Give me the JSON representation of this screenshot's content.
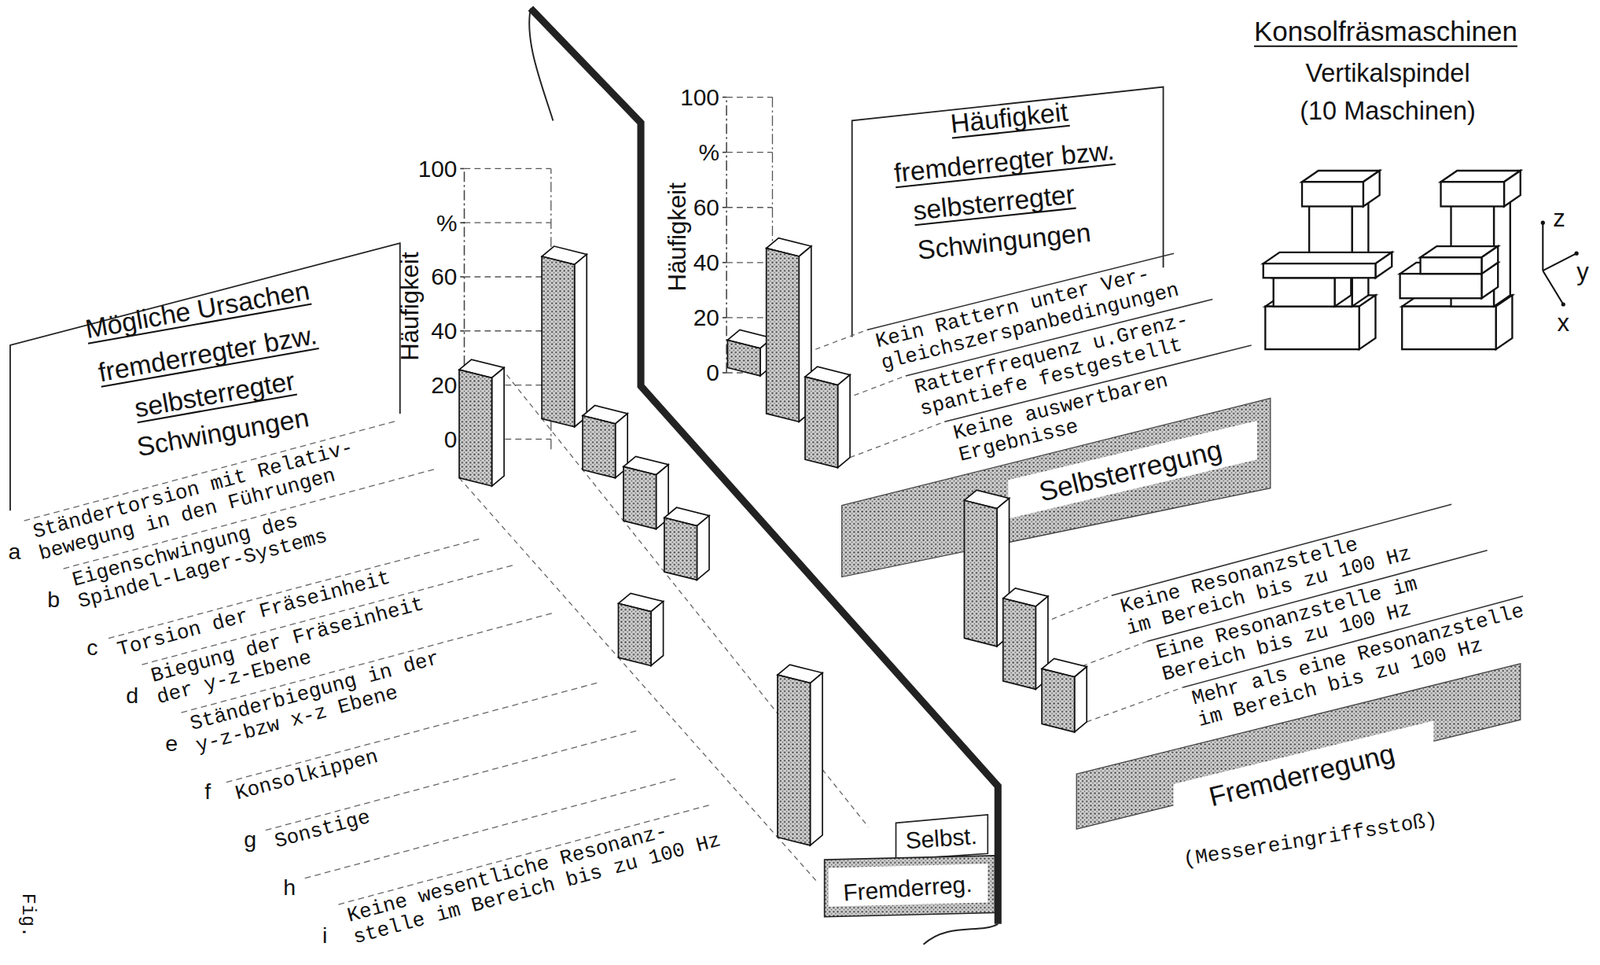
{
  "header": {
    "title": "Konsolfräsmaschinen",
    "subtitle": "Vertikalspindel",
    "note": "(10 Maschinen)"
  },
  "axis_labels": [
    "z",
    "y",
    "x"
  ],
  "figure_label": "Fig.",
  "chart_data": [
    {
      "type": "bar",
      "title": "Mögliche Ursachen fremderregter bzw. selbsterregter Schwingungen",
      "y_label": "Häufigkeit",
      "ylim": [
        0,
        100
      ],
      "yticks": [
        0,
        20,
        40,
        60,
        {
          "value": 80,
          "label": "%"
        },
        100
      ],
      "grid": true,
      "categories": [
        "a",
        "b",
        "c",
        "d",
        "e",
        "f",
        "g",
        "h",
        "i"
      ],
      "category_labels": [
        [
          "Ständertorsion mit Relativ-",
          "bewegung in den Führungen"
        ],
        [
          "Eigenschwingung des",
          "Spindel-Lager-Systems"
        ],
        [
          "Torsion der Fräseinheit"
        ],
        [
          "Biegung der Fräseinheit",
          "der y-z-Ebene"
        ],
        [
          "Ständerbiegung in der",
          "y-z-bzw x-z Ebene"
        ],
        [
          "Konsolkippen"
        ],
        [
          "Sonstige"
        ],
        null,
        [
          "Keine wesentliche Resonanz-",
          "stelle im Bereich bis zu 100 Hz"
        ]
      ],
      "series": [
        {
          "name": "Selbst.",
          "color": "#cfcfcf",
          "values": [
            0,
            60,
            20,
            20,
            20,
            0,
            0,
            0,
            0
          ]
        },
        {
          "name": "Fremderreg.",
          "color": "#cfcfcf",
          "values": [
            40,
            0,
            0,
            0,
            20,
            0,
            0,
            0,
            60
          ]
        }
      ],
      "legend": "bottom-right"
    },
    {
      "type": "bar",
      "title": "Häufigkeit fremderregter bzw. selbsterregter Schwingungen",
      "y_label": "Häufigkeit",
      "ylim": [
        0,
        100
      ],
      "yticks": [
        0,
        20,
        40,
        60,
        {
          "value": 80,
          "label": "%"
        },
        100
      ],
      "grid": true,
      "categories": [
        [
          "Kein Rattern unter Ver-",
          "gleichszerspanbedingungen"
        ],
        [
          "Ratterfrequenz u.Grenz-",
          "spantiefe festgestellt"
        ],
        [
          "Keine auswertbaren",
          "Ergebnisse"
        ]
      ],
      "series": [
        {
          "name": "Selbsterregung",
          "color": "#cfcfcf",
          "values": [
            10,
            60,
            30
          ]
        }
      ],
      "legend": "bottom"
    },
    {
      "type": "bar",
      "subtitle": "(Messereingriffsstoß)",
      "ylim": [
        0,
        100
      ],
      "tick_labels": false,
      "categories": [
        [
          "Keine Resonanzstelle",
          "im Bereich bis zu 100 Hz"
        ],
        [
          "Eine Resonanzstelle im",
          "Bereich bis zu 100 Hz"
        ],
        [
          "Mehr als eine Resonanzstelle",
          "im Bereich bis zu 100 Hz"
        ]
      ],
      "series": [
        {
          "name": "Fremderregung",
          "color": "#cfcfcf",
          "values": [
            50,
            30,
            20
          ]
        }
      ],
      "legend": "bottom"
    }
  ]
}
